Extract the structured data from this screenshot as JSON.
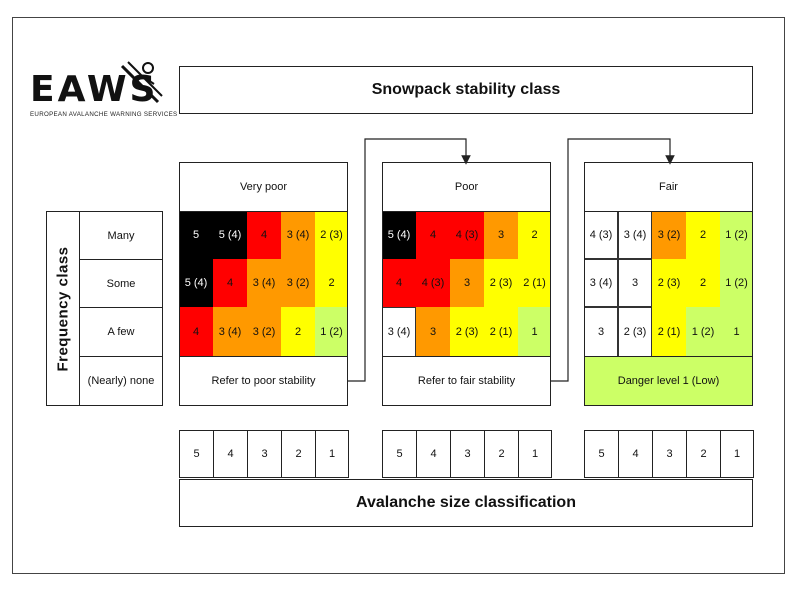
{
  "logo": {
    "text": "EAWS",
    "subtitle": "EUROPEAN AVALANCHE WARNING SERVICES",
    "icon": "avalanche-slope-icon"
  },
  "stability_title": "Snowpack stability class",
  "size_title": "Avalanche size classification",
  "frequency_title": "Frequency class",
  "frequency_classes": [
    "Many",
    "Some",
    "A few",
    "(Nearly) none"
  ],
  "size_labels": [
    "5",
    "4",
    "3",
    "2",
    "1"
  ],
  "colors": {
    "5": "#000000",
    "4": "#ff0000",
    "3": "#ff9900",
    "2": "#ffff00",
    "1": "#ccff66",
    "none": "#ffffff"
  },
  "tables": [
    {
      "header": "Very poor",
      "rows": [
        [
          "5",
          "5 (4)",
          "4",
          "3 (4)",
          "2 (3)"
        ],
        [
          "5 (4)",
          "4",
          "3 (4)",
          "3 (2)",
          "2"
        ],
        [
          "4",
          "3 (4)",
          "3 (2)",
          "2",
          "1 (2)"
        ]
      ],
      "row_colors": [
        [
          "5",
          "5",
          "4",
          "3",
          "2"
        ],
        [
          "5",
          "4",
          "3",
          "3",
          "2"
        ],
        [
          "4",
          "3",
          "3",
          "2",
          "1"
        ]
      ],
      "footer": "Refer to poor stability"
    },
    {
      "header": "Poor",
      "rows": [
        [
          "5 (4)",
          "4",
          "4 (3)",
          "3",
          "2"
        ],
        [
          "4",
          "4 (3)",
          "3",
          "2 (3)",
          "2 (1)"
        ],
        [
          "3 (4)",
          "3",
          "2 (3)",
          "2 (1)",
          "1"
        ]
      ],
      "row_colors": [
        [
          "5",
          "4",
          "4",
          "3",
          "2"
        ],
        [
          "4",
          "4",
          "3",
          "2",
          "2"
        ],
        [
          "none",
          "3",
          "2",
          "2",
          "1"
        ]
      ],
      "footer": "Refer to fair stability"
    },
    {
      "header": "Fair",
      "rows": [
        [
          "4 (3)",
          "3 (4)",
          "3 (2)",
          "2",
          "1 (2)"
        ],
        [
          "3 (4)",
          "3",
          "2 (3)",
          "2",
          "1 (2)"
        ],
        [
          "3",
          "2 (3)",
          "2 (1)",
          "1 (2)",
          "1"
        ]
      ],
      "row_colors": [
        [
          "none",
          "none",
          "3",
          "2",
          "1"
        ],
        [
          "none",
          "none",
          "2",
          "2",
          "1"
        ],
        [
          "none",
          "none",
          "2",
          "1",
          "1"
        ]
      ],
      "footer": "Danger level 1 (Low)",
      "footer_color": "1"
    }
  ]
}
